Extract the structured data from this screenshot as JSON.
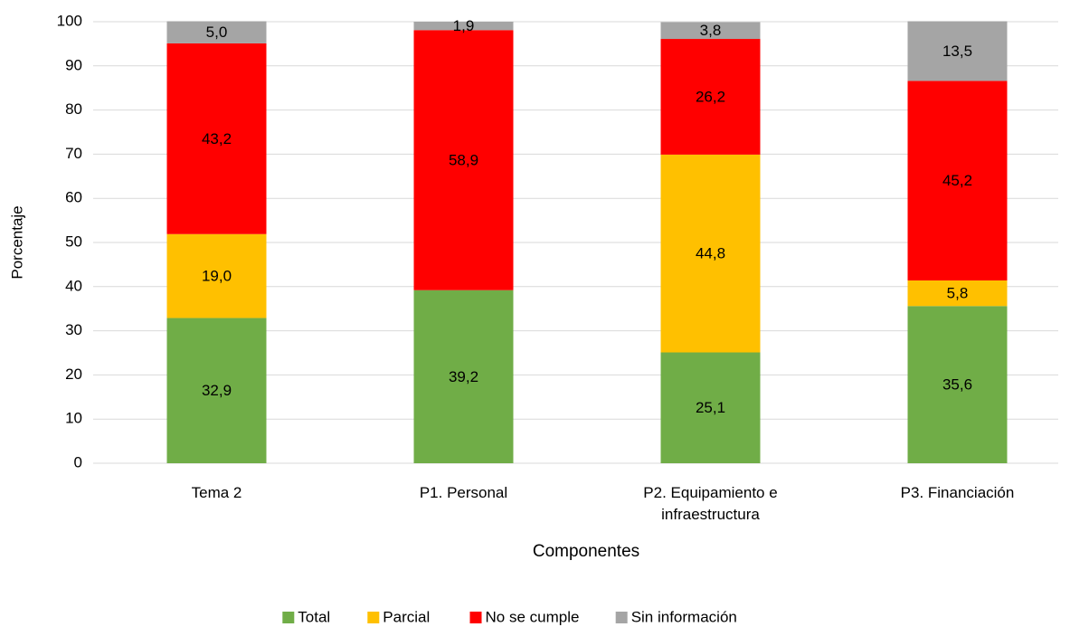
{
  "chart_data": {
    "type": "stacked_bar",
    "categories": [
      "Tema 2",
      "P1. Personal",
      "P2. Equipamiento e infraestructura",
      "P3. Financiación"
    ],
    "series": [
      {
        "name": "Total",
        "color": "#70ad47",
        "values": [
          32.9,
          39.2,
          25.1,
          35.6
        ],
        "value_labels": [
          "32,9",
          "39,2",
          "25,1",
          "35,6"
        ]
      },
      {
        "name": "Parcial",
        "color": "#ffc000",
        "values": [
          19.0,
          0,
          44.8,
          5.8
        ],
        "value_labels": [
          "19,0",
          null,
          "44,8",
          "5,8"
        ]
      },
      {
        "name": "No se cumple",
        "color": "#ff0000",
        "values": [
          43.2,
          58.9,
          26.2,
          45.2
        ],
        "value_labels": [
          "43,2",
          "58,9",
          "26,2",
          "45,2"
        ]
      },
      {
        "name": "Sin información",
        "color": "#a5a5a5",
        "values": [
          5.0,
          1.9,
          3.8,
          13.5
        ],
        "value_labels": [
          "5,0",
          "1,9",
          "3,8",
          "13,5"
        ]
      }
    ],
    "xlabel": "Componentes",
    "ylabel": "Porcentaje",
    "ylim": [
      0,
      100
    ],
    "yticks": [
      0,
      10,
      20,
      30,
      40,
      50,
      60,
      70,
      80,
      90,
      100
    ],
    "grid": true,
    "legend": "bottom"
  }
}
